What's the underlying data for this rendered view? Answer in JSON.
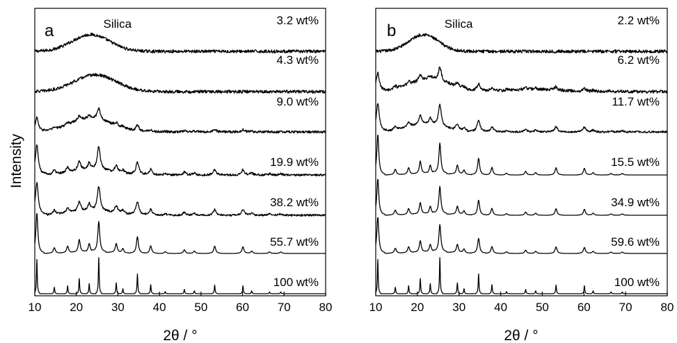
{
  "y_axis_label": "Intensity",
  "colors": {
    "ink": "#000000",
    "background": "#ffffff"
  },
  "chart_data": [
    {
      "type": "line",
      "panel": "a",
      "xlabel": "2θ / °",
      "ylabel": "Intensity",
      "xlim": [
        10,
        80
      ],
      "xticks": [
        "10",
        "20",
        "30",
        "40",
        "50",
        "60",
        "70",
        "80"
      ],
      "y_ticks_shown": false,
      "grid": false,
      "annotations": [
        {
          "text": "Silica",
          "x": 26.5
        }
      ],
      "series": [
        {
          "name": "3.2 wt%",
          "profile": "amorphous",
          "amorph_center": 23.5,
          "amorph_width": 4.5,
          "amorph_height": 0.55,
          "crystalline_scale": 0.0,
          "noise": 0.1
        },
        {
          "name": "4.3 wt%",
          "profile": "amorphous",
          "amorph_center": 24.5,
          "amorph_width": 5.0,
          "amorph_height": 0.55,
          "crystalline_scale": 0.0,
          "noise": 0.1
        },
        {
          "name": "9.0 wt%",
          "profile": "mixed",
          "amorph_center": 23.5,
          "amorph_width": 5.0,
          "amorph_height": 0.45,
          "crystalline_scale": 0.35,
          "noise": 0.08
        },
        {
          "name": "19.9 wt%",
          "profile": "mixed",
          "amorph_center": 24.0,
          "amorph_width": 5.0,
          "amorph_height": 0.18,
          "crystalline_scale": 0.75,
          "noise": 0.07
        },
        {
          "name": "38.2 wt%",
          "profile": "mixed",
          "amorph_center": 24.0,
          "amorph_width": 5.0,
          "amorph_height": 0.15,
          "crystalline_scale": 0.8,
          "noise": 0.06
        },
        {
          "name": "55.7 wt%",
          "profile": "crystalline",
          "amorph_center": 24.0,
          "amorph_width": 5.0,
          "amorph_height": 0.05,
          "crystalline_scale": 1.0,
          "noise": 0.0
        },
        {
          "name": "100 wt%",
          "profile": "sharp",
          "amorph_center": 24.0,
          "amorph_width": 5.0,
          "amorph_height": 0.0,
          "crystalline_scale": 1.0,
          "noise": 0.0
        }
      ]
    },
    {
      "type": "line",
      "panel": "b",
      "xlabel": "2θ / °",
      "ylabel": "",
      "xlim": [
        10,
        80
      ],
      "xticks": [
        "10",
        "20",
        "30",
        "40",
        "50",
        "60",
        "70",
        "80"
      ],
      "y_ticks_shown": false,
      "grid": false,
      "annotations": [
        {
          "text": "Silica",
          "x": 26.5
        }
      ],
      "series": [
        {
          "name": "2.2 wt%",
          "profile": "amorphous",
          "amorph_center": 21.5,
          "amorph_width": 3.5,
          "amorph_height": 0.55,
          "crystalline_scale": 0.0,
          "noise": 0.1
        },
        {
          "name": "6.2 wt%",
          "profile": "mixed-broad",
          "amorph_center": 23.0,
          "amorph_width": 5.0,
          "amorph_height": 0.4,
          "crystalline_scale": 0.45,
          "noise": 0.1
        },
        {
          "name": "11.7 wt%",
          "profile": "mixed",
          "amorph_center": 22.0,
          "amorph_width": 4.5,
          "amorph_height": 0.25,
          "crystalline_scale": 0.7,
          "noise": 0.06
        },
        {
          "name": "15.5 wt%",
          "profile": "crystalline",
          "amorph_center": 24.0,
          "amorph_width": 5.0,
          "amorph_height": 0.05,
          "crystalline_scale": 1.0,
          "noise": 0.0
        },
        {
          "name": "34.9 wt%",
          "profile": "crystalline",
          "amorph_center": 24.0,
          "amorph_width": 5.0,
          "amorph_height": 0.05,
          "crystalline_scale": 0.9,
          "noise": 0.0
        },
        {
          "name": "59.6 wt%",
          "profile": "crystalline",
          "amorph_center": 24.0,
          "amorph_width": 5.0,
          "amorph_height": 0.05,
          "crystalline_scale": 0.9,
          "noise": 0.0
        },
        {
          "name": "100 wt%",
          "profile": "sharp",
          "amorph_center": 24.0,
          "amorph_width": 5.0,
          "amorph_height": 0.0,
          "crystalline_scale": 1.0,
          "noise": 0.0
        }
      ]
    }
  ],
  "reflections": {
    "positions": [
      10.5,
      14.7,
      17.9,
      20.7,
      23.1,
      25.4,
      29.6,
      31.2,
      34.7,
      37.9,
      41.4,
      46.0,
      48.4,
      53.3,
      60.1,
      62.2,
      66.5,
      69.2
    ],
    "intensities": [
      0.95,
      0.18,
      0.22,
      0.42,
      0.28,
      1.0,
      0.3,
      0.14,
      0.55,
      0.25,
      0.06,
      0.12,
      0.08,
      0.24,
      0.22,
      0.08,
      0.05,
      0.05
    ]
  }
}
